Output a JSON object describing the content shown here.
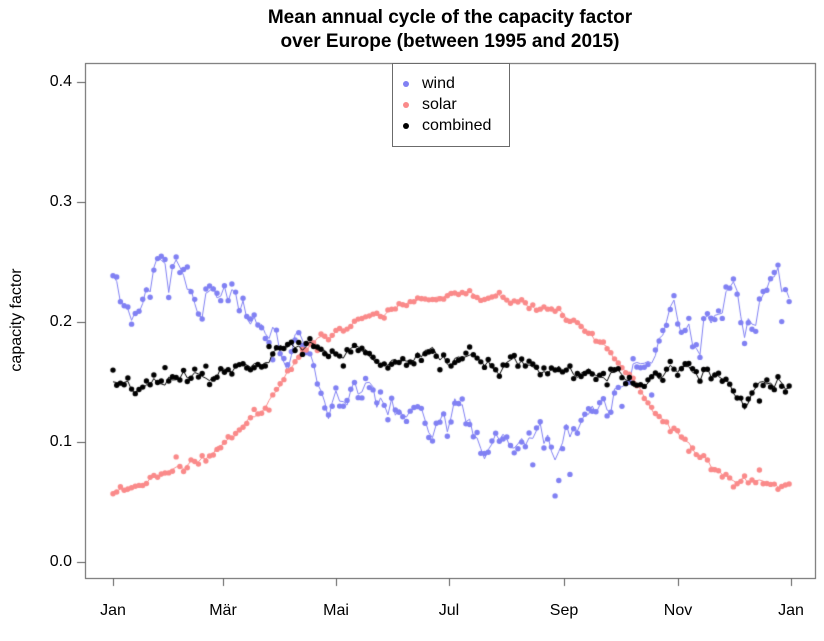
{
  "title": {
    "line1": "Mean annual cycle of the capacity factor",
    "line2": "over Europe (between 1995 and 2015)"
  },
  "axes": {
    "y_label": "capacity factor",
    "y_ticks": [
      "0.0",
      "0.1",
      "0.2",
      "0.3",
      "0.4"
    ],
    "x_ticks": [
      "Jan",
      "Mär",
      "Mai",
      "Jul",
      "Sep",
      "Nov",
      "Jan"
    ]
  },
  "legend": {
    "items": [
      {
        "label": "wind",
        "color": "#8181F3"
      },
      {
        "label": "solar",
        "color": "#FA8A8A"
      },
      {
        "label": "combined",
        "color": "#000000"
      }
    ]
  },
  "chart_data": {
    "type": "scatter",
    "title": "Mean annual cycle of the capacity factor over Europe (between 1995 and 2015)",
    "xlabel": "",
    "ylabel": "capacity factor",
    "x_tick_labels": [
      "Jan",
      "Mär",
      "Mai",
      "Jul",
      "Sep",
      "Nov",
      "Jan"
    ],
    "x_tick_days": [
      0,
      59,
      120,
      181,
      243,
      304,
      365
    ],
    "y_ticks": [
      0.0,
      0.1,
      0.2,
      0.3,
      0.4
    ],
    "xlim_days": [
      0,
      365
    ],
    "ylim": [
      -0.013,
      0.416
    ],
    "grid": false,
    "legend_position": "top-center-inside",
    "point_step_days": 2,
    "marker": "filled-circle-with-thin-line",
    "series": [
      {
        "name": "wind",
        "color": "#8181F3",
        "noise": {
          "persist": 0.6,
          "walk": 0.012,
          "jitter": 0.005,
          "outlier_p": 0.06,
          "outlier_amp": 0.022
        },
        "anchors": {
          "days": [
            0,
            5,
            10,
            15,
            20,
            25,
            30,
            33,
            36,
            40,
            45,
            50,
            55,
            60,
            65,
            70,
            75,
            80,
            85,
            90,
            95,
            100,
            105,
            110,
            115,
            120,
            125,
            130,
            135,
            140,
            145,
            150,
            155,
            160,
            165,
            170,
            175,
            180,
            185,
            190,
            195,
            200,
            205,
            210,
            215,
            220,
            225,
            230,
            235,
            240,
            245,
            250,
            255,
            260,
            265,
            270,
            275,
            280,
            285,
            290,
            295,
            300,
            305,
            310,
            315,
            320,
            325,
            330,
            335,
            340,
            345,
            350,
            353,
            357,
            360,
            363,
            365
          ],
          "values": [
            0.238,
            0.222,
            0.213,
            0.225,
            0.231,
            0.247,
            0.228,
            0.258,
            0.243,
            0.225,
            0.212,
            0.222,
            0.234,
            0.23,
            0.222,
            0.21,
            0.203,
            0.197,
            0.19,
            0.182,
            0.176,
            0.185,
            0.172,
            0.15,
            0.122,
            0.132,
            0.145,
            0.148,
            0.14,
            0.13,
            0.125,
            0.128,
            0.118,
            0.125,
            0.14,
            0.128,
            0.118,
            0.112,
            0.128,
            0.118,
            0.11,
            0.105,
            0.096,
            0.092,
            0.1,
            0.108,
            0.115,
            0.104,
            0.098,
            0.102,
            0.11,
            0.108,
            0.118,
            0.13,
            0.122,
            0.14,
            0.152,
            0.165,
            0.172,
            0.185,
            0.192,
            0.2,
            0.205,
            0.19,
            0.178,
            0.212,
            0.195,
            0.218,
            0.238,
            0.2,
            0.215,
            0.222,
            0.246,
            0.256,
            0.225,
            0.218,
            0.215
          ]
        }
      },
      {
        "name": "solar",
        "color": "#FA8A8A",
        "noise": {
          "persist": 0.5,
          "walk": 0.0028,
          "jitter": 0.0022,
          "outlier_p": 0.03,
          "outlier_amp": 0.007
        },
        "anchors": {
          "days": [
            0,
            10,
            20,
            30,
            40,
            50,
            60,
            70,
            80,
            85,
            90,
            95,
            100,
            105,
            110,
            115,
            120,
            125,
            130,
            135,
            140,
            145,
            150,
            155,
            160,
            165,
            170,
            175,
            180,
            185,
            190,
            195,
            200,
            205,
            210,
            215,
            220,
            225,
            230,
            235,
            240,
            245,
            250,
            255,
            260,
            265,
            270,
            275,
            280,
            285,
            290,
            295,
            300,
            305,
            310,
            315,
            320,
            325,
            330,
            335,
            340,
            345,
            350,
            355,
            360,
            365
          ],
          "values": [
            0.061,
            0.063,
            0.067,
            0.072,
            0.08,
            0.088,
            0.098,
            0.112,
            0.128,
            0.138,
            0.15,
            0.163,
            0.172,
            0.178,
            0.184,
            0.188,
            0.193,
            0.196,
            0.2,
            0.203,
            0.206,
            0.209,
            0.212,
            0.214,
            0.217,
            0.219,
            0.221,
            0.222,
            0.223,
            0.224,
            0.225,
            0.224,
            0.222,
            0.221,
            0.22,
            0.218,
            0.215,
            0.213,
            0.211,
            0.209,
            0.208,
            0.204,
            0.198,
            0.193,
            0.186,
            0.178,
            0.168,
            0.158,
            0.148,
            0.14,
            0.13,
            0.12,
            0.112,
            0.104,
            0.096,
            0.088,
            0.082,
            0.077,
            0.073,
            0.07,
            0.068,
            0.066,
            0.064,
            0.063,
            0.062,
            0.061
          ]
        }
      },
      {
        "name": "combined",
        "color": "#000000",
        "noise": {
          "persist": 0.5,
          "walk": 0.005,
          "jitter": 0.0035,
          "outlier_p": 0.03,
          "outlier_amp": 0.009
        },
        "anchors": {
          "days": [
            0,
            10,
            20,
            30,
            40,
            50,
            60,
            70,
            80,
            90,
            100,
            105,
            110,
            115,
            120,
            130,
            140,
            150,
            160,
            170,
            180,
            190,
            200,
            210,
            215,
            220,
            230,
            240,
            250,
            260,
            270,
            275,
            280,
            285,
            290,
            300,
            305,
            310,
            315,
            320,
            325,
            330,
            335,
            340,
            345,
            350,
            355,
            360,
            365
          ],
          "values": [
            0.15,
            0.143,
            0.149,
            0.152,
            0.155,
            0.156,
            0.163,
            0.165,
            0.17,
            0.175,
            0.18,
            0.178,
            0.176,
            0.172,
            0.17,
            0.172,
            0.168,
            0.17,
            0.17,
            0.173,
            0.168,
            0.17,
            0.165,
            0.16,
            0.165,
            0.163,
            0.156,
            0.158,
            0.156,
            0.153,
            0.155,
            0.16,
            0.15,
            0.142,
            0.152,
            0.16,
            0.162,
            0.158,
            0.152,
            0.16,
            0.156,
            0.15,
            0.14,
            0.128,
            0.146,
            0.15,
            0.144,
            0.152,
            0.145
          ]
        }
      }
    ]
  }
}
